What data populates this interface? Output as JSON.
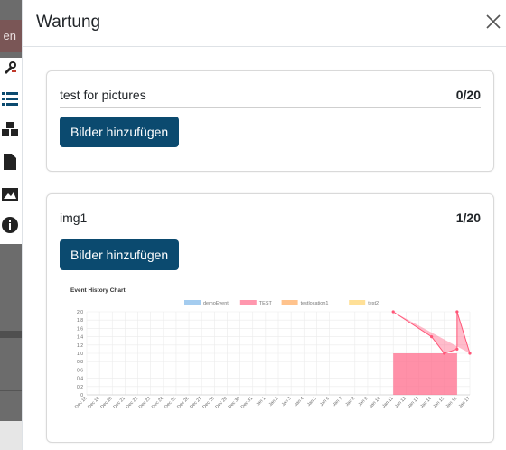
{
  "background": {
    "button_label": "en"
  },
  "modal": {
    "title": "Wartung",
    "close_icon": "close-icon"
  },
  "cards": [
    {
      "name": "test for pictures",
      "count": "0/20",
      "button_label": "Bilder hinzufügen"
    },
    {
      "name": "img1",
      "count": "1/20",
      "button_label": "Bilder hinzufügen"
    }
  ],
  "colors": {
    "primary_button": "#0b4a6f",
    "series": [
      "#7db7e8",
      "#ff6b8b",
      "#ffa95c",
      "#ffd36b"
    ]
  },
  "chart_data": {
    "type": "line",
    "title": "Event History Chart",
    "legend": [
      "demoEvent",
      "TEST",
      "testlocation1",
      "test2"
    ],
    "legend_placement": "top",
    "x": [
      "Dec 18",
      "Dec 19",
      "Dec 20",
      "Dec 21",
      "Dec 22",
      "Dec 23",
      "Dec 24",
      "Dec 25",
      "Dec 26",
      "Dec 27",
      "Dec 28",
      "Dec 29",
      "Dec 30",
      "Dec 31",
      "Jan 1",
      "Jan 2",
      "Jan 3",
      "Jan 4",
      "Jan 5",
      "Jan 6",
      "Jan 7",
      "Jan 8",
      "Jan 9",
      "Jan 10",
      "Jan 11",
      "Jan 12",
      "Jan 13",
      "Jan 14",
      "Jan 15",
      "Jan 16",
      "Jan 17"
    ],
    "yticks": [
      "0",
      "0.2",
      "0.4",
      "0.6",
      "0.8",
      "1.0",
      "1.2",
      "1.4",
      "1.6",
      "1.8",
      "2.0"
    ],
    "ylim": [
      0,
      2
    ],
    "grid": true,
    "series": [
      {
        "name": "TEST",
        "points": [
          [
            "Jan 11",
            2
          ],
          [
            "Jan 14",
            1.4
          ],
          [
            "Jan 15",
            1
          ],
          [
            "Jan 16",
            1.1
          ],
          [
            "Jan 16",
            2
          ],
          [
            "Jan 17",
            1
          ]
        ]
      },
      {
        "name": "demoEvent",
        "points": [
          [
            "Jan 17",
            2
          ]
        ]
      }
    ],
    "bar_region": {
      "from": "Jan 11",
      "to": "Jan 16",
      "value": 1
    }
  }
}
